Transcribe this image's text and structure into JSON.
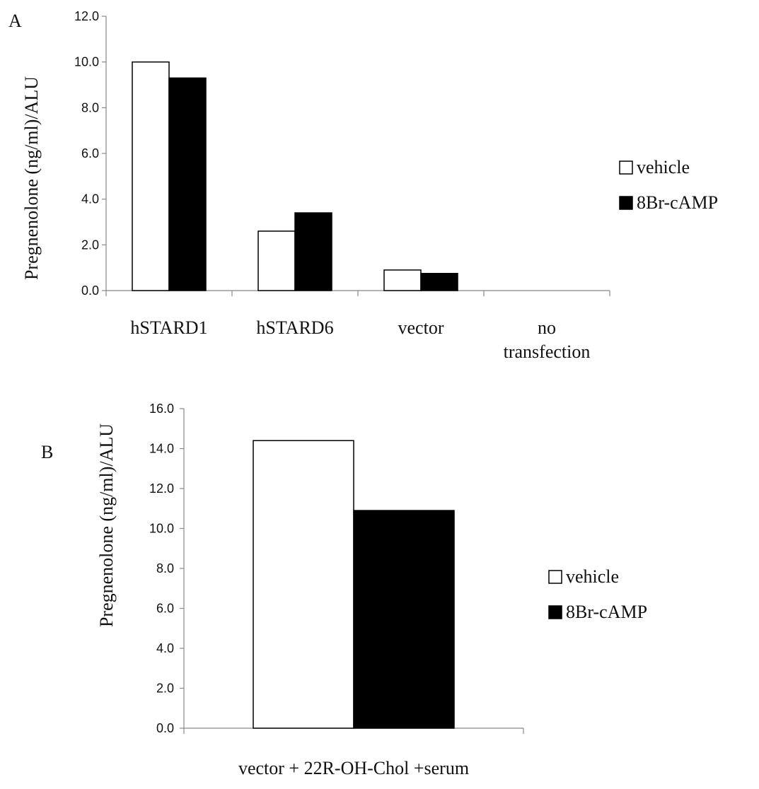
{
  "chart_data": [
    {
      "type": "bar",
      "panel_label": "A",
      "categories": [
        "hSTARD1",
        "hSTARD6",
        "vector",
        "no\ntransfection"
      ],
      "series": [
        {
          "name": "vehicle",
          "values": [
            10.0,
            2.6,
            0.9,
            0.0
          ],
          "color": "#ffffff"
        },
        {
          "name": "8Br-cAMP",
          "values": [
            9.3,
            3.4,
            0.75,
            0.0
          ],
          "color": "#000000"
        }
      ],
      "ylabel": "Pregnenolone (ng/ml)/ALU",
      "xlabel": "",
      "ylim": [
        0,
        12
      ],
      "yticks": [
        "0.0",
        "2.0",
        "4.0",
        "6.0",
        "8.0",
        "10.0",
        "12.0"
      ],
      "grid": false,
      "legend": "right"
    },
    {
      "type": "bar",
      "panel_label": "B",
      "categories": [
        "vector + 22R-OH-Chol +serum"
      ],
      "series": [
        {
          "name": "vehicle",
          "values": [
            14.4
          ],
          "color": "#ffffff"
        },
        {
          "name": "8Br-cAMP",
          "values": [
            10.9
          ],
          "color": "#000000"
        }
      ],
      "ylabel": "Pregnenolone (ng/ml)/ALU",
      "xlabel": "",
      "ylim": [
        0,
        16
      ],
      "yticks": [
        "0.0",
        "2.0",
        "4.0",
        "6.0",
        "8.0",
        "10.0",
        "12.0",
        "14.0",
        "16.0"
      ],
      "grid": false,
      "legend": "right"
    }
  ]
}
